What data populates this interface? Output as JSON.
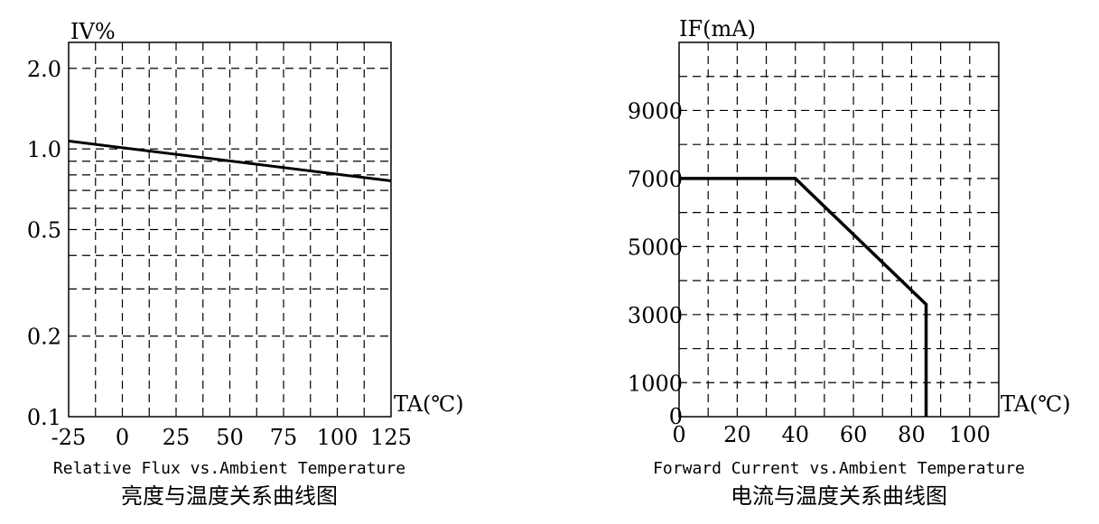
{
  "chart_data": [
    {
      "type": "line",
      "title": "",
      "ylabel": "IV%",
      "xlabel": "TA(℃)",
      "x_ticks": [
        "-25",
        "0",
        "25",
        "50",
        "75",
        "100",
        "125"
      ],
      "x_tick_values": [
        -25,
        0,
        25,
        50,
        75,
        100,
        125
      ],
      "y_ticks": [
        "2.0",
        "1.0",
        "0.5",
        "0.2",
        "0.1"
      ],
      "y_tick_values": [
        2.0,
        1.0,
        0.5,
        0.2,
        0.1
      ],
      "y_scale": "log",
      "xlim": [
        -25,
        125
      ],
      "ylim": [
        0.1,
        2.5
      ],
      "grid": true,
      "series": [
        {
          "x": [
            -25,
            125
          ],
          "y": [
            1.07,
            0.76
          ]
        }
      ],
      "caption_en": "Relative Flux vs.Ambient Temperature",
      "caption_zh": "亮度与温度关系曲线图"
    },
    {
      "type": "line",
      "title": "",
      "ylabel": "IF(mA)",
      "xlabel": "TA(℃)",
      "x_ticks": [
        "0",
        "20",
        "40",
        "60",
        "80",
        "100"
      ],
      "x_tick_values": [
        0,
        20,
        40,
        60,
        80,
        100
      ],
      "y_ticks": [
        "9000",
        "7000",
        "5000",
        "3000",
        "1000",
        "0"
      ],
      "y_tick_values": [
        9000,
        7000,
        5000,
        3000,
        1000,
        0
      ],
      "xlim": [
        0,
        110
      ],
      "ylim": [
        0,
        11000
      ],
      "grid": true,
      "series": [
        {
          "x": [
            0,
            40,
            85,
            85
          ],
          "y": [
            7000,
            7000,
            3300,
            0
          ]
        }
      ],
      "caption_en": "Forward Current vs.Ambient Temperature",
      "caption_zh": "电流与温度关系曲线图"
    }
  ]
}
